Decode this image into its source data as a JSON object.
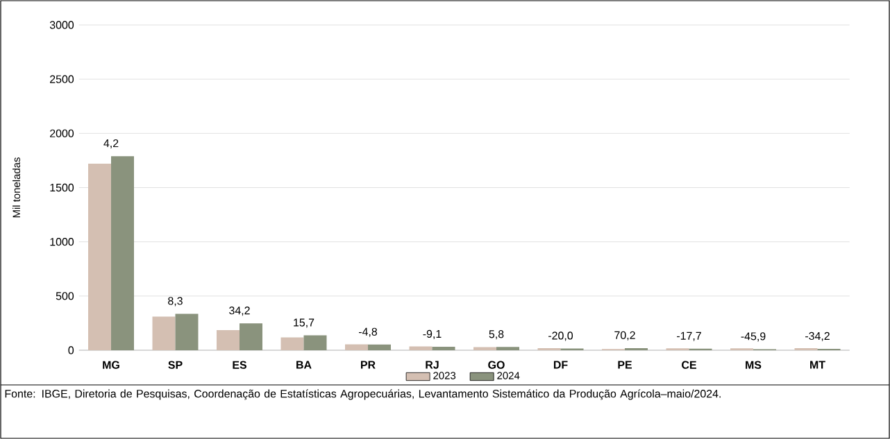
{
  "chart_data": {
    "type": "bar",
    "ylabel": "Mil toneladas",
    "categories": [
      "MG",
      "SP",
      "ES",
      "BA",
      "PR",
      "RJ",
      "GO",
      "DF",
      "PE",
      "CE",
      "MS",
      "MT"
    ],
    "series": [
      {
        "name": "2023",
        "color": "#d4bfb2",
        "values": [
          1720,
          310,
          185,
          118,
          55,
          35,
          28,
          20,
          12,
          17,
          18,
          20
        ]
      },
      {
        "name": "2024",
        "color": "#8a937d",
        "values": [
          1790,
          336,
          248,
          137,
          52,
          32,
          30,
          16,
          20,
          14,
          10,
          13
        ]
      }
    ],
    "ylim": [
      0,
      3000
    ],
    "yticks": [
      0,
      500,
      1000,
      1500,
      2000,
      2500,
      3000
    ],
    "grid": "y",
    "legend": "bottom",
    "annotations": [
      {
        "text": "4,2",
        "x": "MG",
        "y": 1790
      },
      {
        "text": "8,3",
        "x": "SP",
        "y": 336
      },
      {
        "text": "34,2",
        "x": "ES",
        "y": 248
      },
      {
        "text": "15,7",
        "x": "BA",
        "y": 137
      },
      {
        "text": "-4,8",
        "x": "PR",
        "y": 52
      },
      {
        "text": "-9,1",
        "x": "RJ",
        "y": 32
      },
      {
        "text": "5,8",
        "x": "GO",
        "y": 30
      },
      {
        "text": "-20,0",
        "x": "DF",
        "y": 16
      },
      {
        "text": "70,2",
        "x": "PE",
        "y": 20
      },
      {
        "text": "-17,7",
        "x": "CE",
        "y": 14
      },
      {
        "text": "-45,9",
        "x": "MS",
        "y": 10
      },
      {
        "text": "-34,2",
        "x": "MT",
        "y": 13
      },
      "Fonte: IBGE, Diretoria de Pesquisas, Coordenação de Estatísticas Agropecuárias, Levantamento Sistemático da Produção Agrícola–maio/2024."
    ]
  }
}
